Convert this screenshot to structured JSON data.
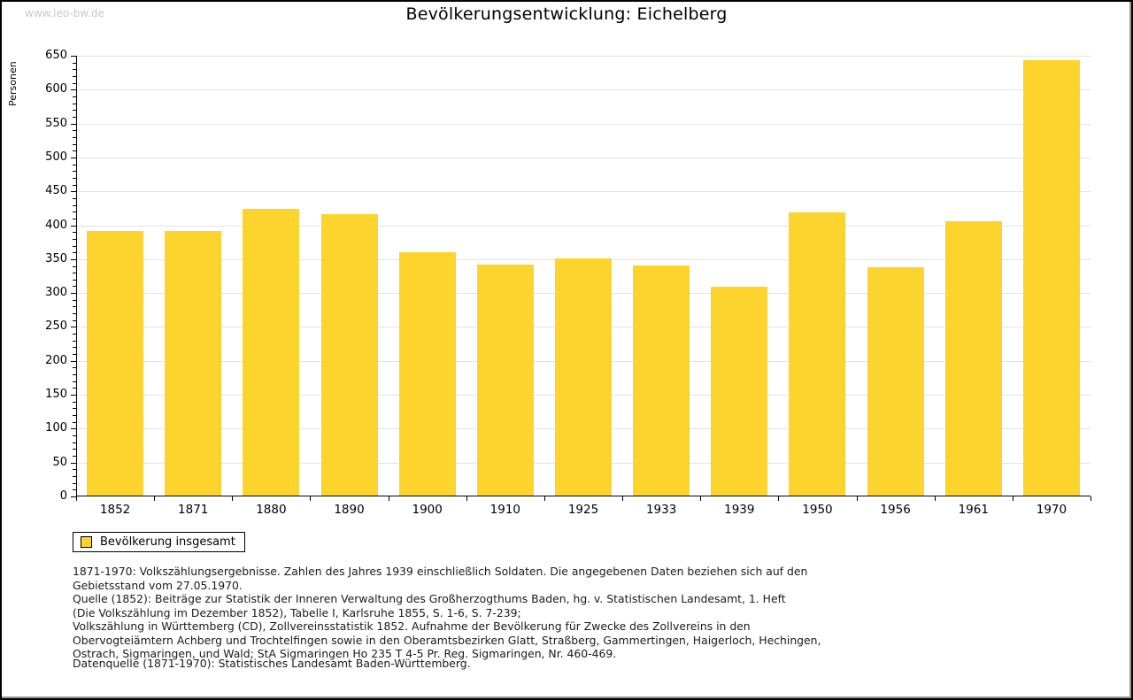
{
  "page": {
    "watermark": "www.leo-bw.de",
    "title": "Bevölkerungsentwicklung: Eichelberg"
  },
  "chart_data": {
    "type": "bar",
    "title": "Bevölkerungsentwicklung: Eichelberg",
    "xlabel": "",
    "ylabel": "Personen",
    "categories": [
      "1852",
      "1871",
      "1880",
      "1890",
      "1900",
      "1910",
      "1925",
      "1933",
      "1939",
      "1950",
      "1956",
      "1961",
      "1970"
    ],
    "series": [
      {
        "name": "Bevölkerung insgesamt",
        "color": "#FDD32D",
        "values": [
          392,
          392,
          424,
          416,
          360,
          342,
          351,
          341,
          309,
          419,
          338,
          406,
          643
        ]
      }
    ],
    "ylim": [
      0,
      650
    ],
    "ytick_step": 50,
    "minor_tick_step": 10,
    "grid": true,
    "legend_position": "bottom-left"
  },
  "legend": {
    "label": "Bevölkerung insgesamt",
    "swatch_color": "#FDD32D"
  },
  "footnotes": {
    "lines": [
      "1871-1970: Volkszählungsergebnisse. Zahlen des Jahres 1939 einschließlich Soldaten. Die angegebenen Daten beziehen sich auf den",
      "Gebietsstand vom 27.05.1970.",
      "Quelle (1852): Beiträge zur Statistik der Inneren Verwaltung des Großherzogthums Baden, hg. v. Statistischen Landesamt, 1. Heft",
      "(Die Volkszählung im Dezember 1852), Tabelle I, Karlsruhe 1855, S. 1-6, S. 7-239;",
      "Volkszählung in Württemberg (CD), Zollvereinsstatistik 1852. Aufnahme der Bevölkerung für Zwecke des Zollvereins in den",
      "Obervogteiämtern Achberg und Trochtelfingen sowie in den Oberamtsbezirken Glatt, Straßberg, Gammertingen, Haigerloch, Hechingen,",
      "Ostrach, Sigmaringen, und Wald; StA Sigmaringen Ho 235 T 4-5 Pr. Reg. Sigmaringen, Nr. 460-469."
    ],
    "datasource": "Datenquelle (1871-1970): Statistisches Landesamt Baden-Württemberg."
  }
}
